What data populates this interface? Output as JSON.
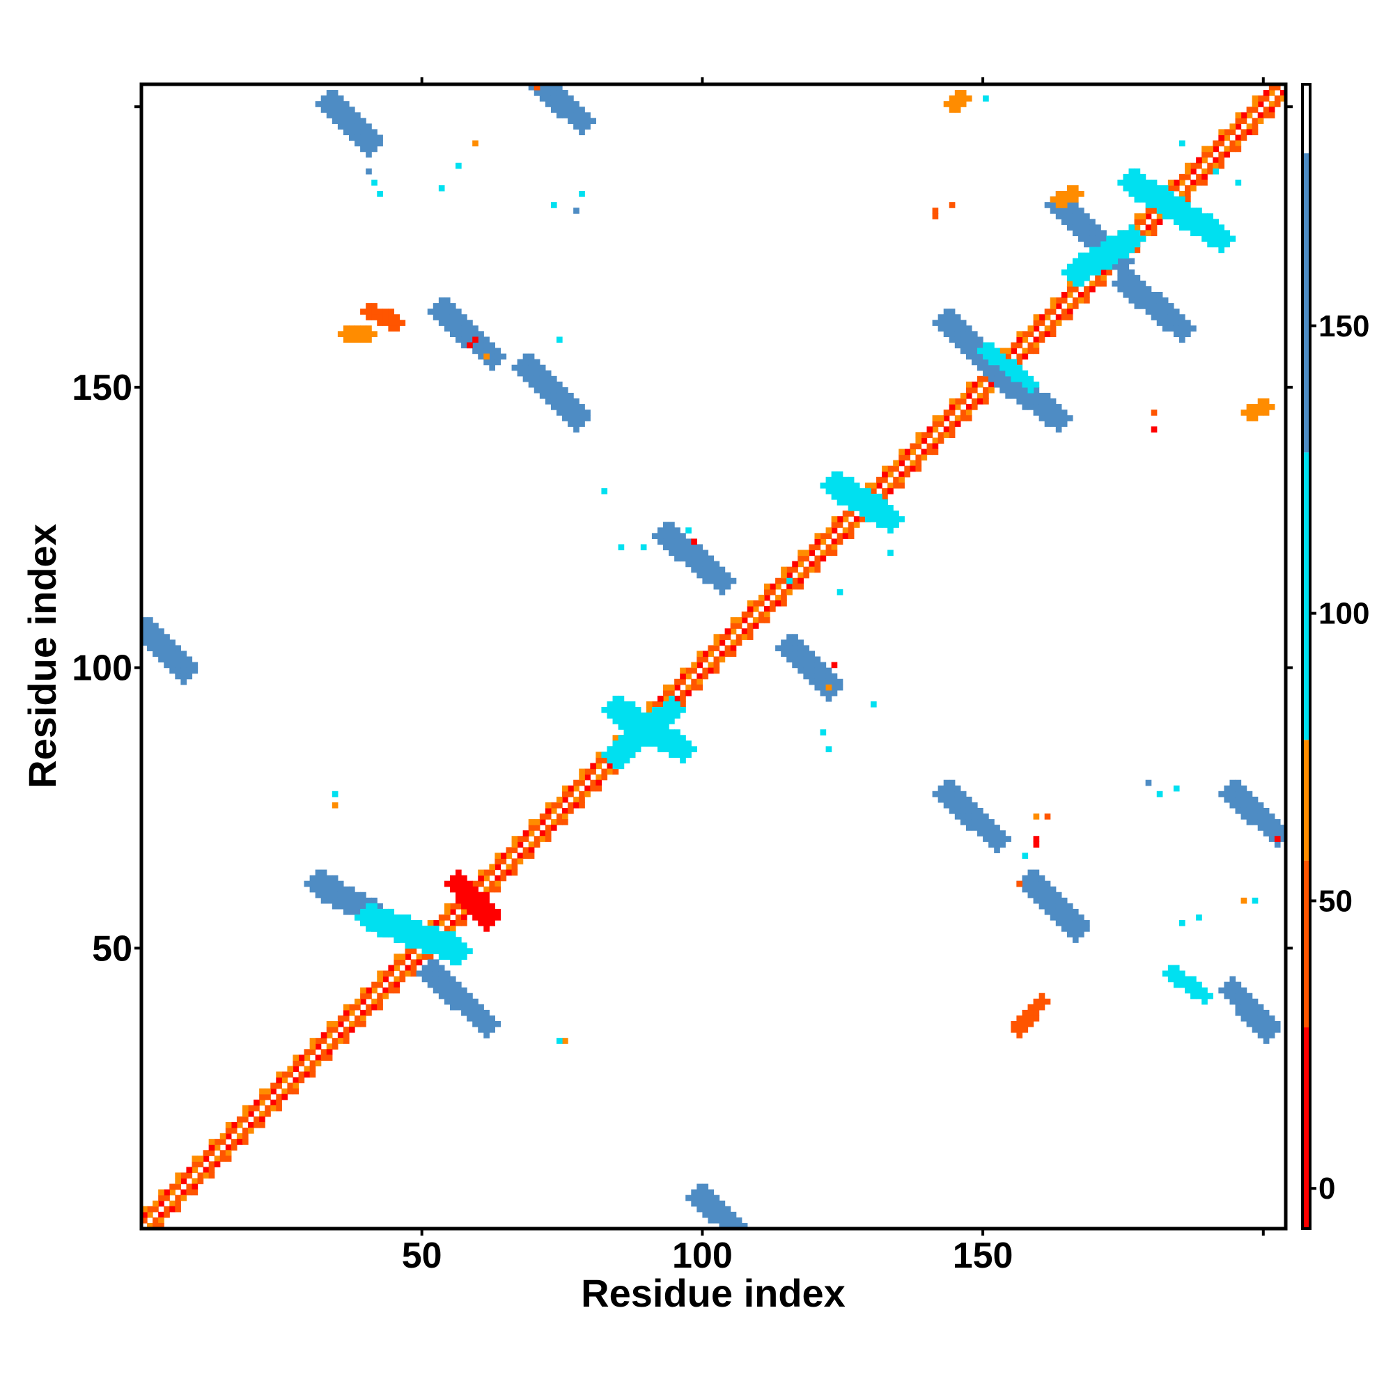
{
  "chart_data": {
    "type": "heatmap",
    "title": "",
    "xlabel": "Residue index",
    "ylabel": "Residue index",
    "xlim": [
      0,
      204
    ],
    "ylim": [
      0,
      204
    ],
    "x_ticks": [
      50,
      100,
      150
    ],
    "y_ticks": [
      50,
      100,
      150
    ],
    "grid": false,
    "colorbar": {
      "placement": "right",
      "range": [
        -7,
        192
      ],
      "ticks": [
        0,
        50,
        100,
        150
      ],
      "bands": [
        {
          "from": -7,
          "to": 28,
          "color": "#ff0000"
        },
        {
          "from": 28,
          "to": 57,
          "color": "#ff5500"
        },
        {
          "from": 57,
          "to": 78,
          "color": "#ff8c00"
        },
        {
          "from": 78,
          "to": 128,
          "color": "#00e0f0"
        },
        {
          "from": 128,
          "to": 180,
          "color": "#4e8cc4"
        },
        {
          "from": 180,
          "to": 192,
          "color": "#ffffff"
        }
      ]
    },
    "colors": {
      "red": "#ff0000",
      "orange_red": "#ff5500",
      "orange": "#ff8c00",
      "cyan": "#00e0f0",
      "steel_blue": "#4e8cc4"
    },
    "regions": [
      {
        "kind": "diagonal",
        "x0": 1,
        "x1": 204
      },
      {
        "kind": "segment",
        "x0": 31,
        "y0": 61,
        "x1": 45,
        "y1": 53,
        "width": 3.5,
        "color": "#4e8cc4"
      },
      {
        "kind": "segment",
        "x0": 51,
        "y0": 45,
        "x1": 61,
        "y1": 36,
        "width": 3.5,
        "color": "#4e8cc4"
      },
      {
        "kind": "segment",
        "x0": 0,
        "y0": 106,
        "x1": 7,
        "y1": 99,
        "width": 3,
        "color": "#4e8cc4"
      },
      {
        "kind": "segment",
        "x0": 99,
        "y0": 5,
        "x1": 105,
        "y1": 0,
        "width": 3,
        "color": "#4e8cc4"
      },
      {
        "kind": "segment",
        "x0": 53,
        "y0": 163,
        "x1": 62,
        "y1": 155,
        "width": 3.5,
        "color": "#4e8cc4"
      },
      {
        "kind": "segment",
        "x0": 68,
        "y0": 153,
        "x1": 77,
        "y1": 144,
        "width": 3.5,
        "color": "#4e8cc4"
      },
      {
        "kind": "segment",
        "x0": 33,
        "y0": 200,
        "x1": 40,
        "y1": 193,
        "width": 3,
        "color": "#4e8cc4"
      },
      {
        "kind": "segment",
        "x0": 71,
        "y0": 203,
        "x1": 78,
        "y1": 197,
        "width": 3,
        "color": "#4e8cc4"
      },
      {
        "kind": "segment",
        "x0": 93,
        "y0": 123,
        "x1": 103,
        "y1": 115,
        "width": 3,
        "color": "#4e8cc4"
      },
      {
        "kind": "segment",
        "x0": 115,
        "y0": 103,
        "x1": 122,
        "y1": 96,
        "width": 3,
        "color": "#4e8cc4"
      },
      {
        "kind": "segment",
        "x0": 143,
        "y0": 161,
        "x1": 151,
        "y1": 153,
        "width": 3,
        "color": "#4e8cc4"
      },
      {
        "kind": "segment",
        "x0": 153,
        "y0": 151,
        "x1": 163,
        "y1": 144,
        "width": 3,
        "color": "#4e8cc4"
      },
      {
        "kind": "segment",
        "x0": 163,
        "y0": 182,
        "x1": 174,
        "y1": 172,
        "width": 3.5,
        "color": "#4e8cc4"
      },
      {
        "kind": "segment",
        "x0": 175,
        "y0": 168,
        "x1": 185,
        "y1": 160,
        "width": 3.5,
        "color": "#4e8cc4"
      },
      {
        "kind": "segment",
        "x0": 143,
        "y0": 77,
        "x1": 152,
        "y1": 69,
        "width": 3.5,
        "color": "#4e8cc4"
      },
      {
        "kind": "segment",
        "x0": 158,
        "y0": 61,
        "x1": 166,
        "y1": 53,
        "width": 3.5,
        "color": "#4e8cc4"
      },
      {
        "kind": "segment",
        "x0": 194,
        "y0": 77,
        "x1": 202,
        "y1": 70,
        "width": 3.5,
        "color": "#4e8cc4"
      },
      {
        "kind": "segment",
        "x0": 194,
        "y0": 42,
        "x1": 200,
        "y1": 35,
        "width": 3.5,
        "color": "#4e8cc4"
      },
      {
        "kind": "segment",
        "x0": 183,
        "y0": 45,
        "x1": 189,
        "y1": 41,
        "width": 2.5,
        "color": "#00e0f0"
      },
      {
        "kind": "segment",
        "x0": 84,
        "y0": 92,
        "x1": 96,
        "y1": 85,
        "width": 3,
        "color": "#00e0f0"
      },
      {
        "kind": "segment",
        "x0": 84,
        "y0": 84,
        "x1": 94,
        "y1": 92,
        "width": 3,
        "color": "#00e0f0"
      },
      {
        "kind": "segment",
        "x0": 40,
        "y0": 55,
        "x1": 56,
        "y1": 49,
        "width": 3,
        "color": "#00e0f0"
      },
      {
        "kind": "segment",
        "x0": 123,
        "y0": 132,
        "x1": 133,
        "y1": 126,
        "width": 3,
        "color": "#00e0f0"
      },
      {
        "kind": "segment",
        "x0": 150,
        "y0": 156,
        "x1": 158,
        "y1": 150,
        "width": 2.5,
        "color": "#00e0f0"
      },
      {
        "kind": "segment",
        "x0": 176,
        "y0": 186,
        "x1": 192,
        "y1": 176,
        "width": 3,
        "color": "#00e0f0"
      },
      {
        "kind": "segment",
        "x0": 166,
        "y0": 170,
        "x1": 176,
        "y1": 176,
        "width": 3,
        "color": "#00e0f0"
      },
      {
        "kind": "segment",
        "x0": 56,
        "y0": 61,
        "x1": 61,
        "y1": 55,
        "width": 3,
        "color": "#ff0000"
      },
      {
        "kind": "segment",
        "x0": 40,
        "y0": 163,
        "x1": 45,
        "y1": 161,
        "width": 1.5,
        "color": "#ff5500"
      },
      {
        "kind": "segment",
        "x0": 36,
        "y0": 159,
        "x1": 40,
        "y1": 159,
        "width": 1.5,
        "color": "#ff8c00"
      },
      {
        "kind": "segment",
        "x0": 156,
        "y0": 35,
        "x1": 160,
        "y1": 40,
        "width": 1.5,
        "color": "#ff5500"
      },
      {
        "kind": "segment",
        "x0": 163,
        "y0": 183,
        "x1": 166,
        "y1": 184,
        "width": 1.5,
        "color": "#ff8c00"
      },
      {
        "kind": "segment",
        "x0": 144,
        "y0": 200,
        "x1": 146,
        "y1": 201,
        "width": 1.5,
        "color": "#ff8c00"
      },
      {
        "kind": "segment",
        "x0": 197,
        "y0": 145,
        "x1": 200,
        "y1": 146,
        "width": 1.5,
        "color": "#ff8c00"
      },
      {
        "kind": "dot",
        "x": 58,
        "y": 157,
        "color": "#ff0000"
      },
      {
        "kind": "dot",
        "x": 59,
        "y": 158,
        "color": "#ff0000"
      },
      {
        "kind": "dot",
        "x": 74,
        "y": 158,
        "color": "#00e0f0"
      },
      {
        "kind": "dot",
        "x": 61,
        "y": 155,
        "color": "#ff8c00"
      },
      {
        "kind": "dot",
        "x": 82,
        "y": 131,
        "color": "#00e0f0"
      },
      {
        "kind": "dot",
        "x": 85,
        "y": 121,
        "color": "#00e0f0"
      },
      {
        "kind": "dot",
        "x": 89,
        "y": 121,
        "color": "#00e0f0"
      },
      {
        "kind": "dot",
        "x": 98,
        "y": 122,
        "color": "#ff0000"
      },
      {
        "kind": "dot",
        "x": 97,
        "y": 124,
        "color": "#00e0f0"
      },
      {
        "kind": "dot",
        "x": 123,
        "y": 100,
        "color": "#ff0000"
      },
      {
        "kind": "dot",
        "x": 122,
        "y": 96,
        "color": "#ff8c00"
      },
      {
        "kind": "dot",
        "x": 130,
        "y": 93,
        "color": "#00e0f0"
      },
      {
        "kind": "dot",
        "x": 121,
        "y": 88,
        "color": "#00e0f0"
      },
      {
        "kind": "dot",
        "x": 122,
        "y": 85,
        "color": "#00e0f0"
      },
      {
        "kind": "dot",
        "x": 115,
        "y": 115,
        "color": "#00e0f0"
      },
      {
        "kind": "dot",
        "x": 124,
        "y": 113,
        "color": "#00e0f0"
      },
      {
        "kind": "dot",
        "x": 133,
        "y": 120,
        "color": "#00e0f0"
      },
      {
        "kind": "dot",
        "x": 34,
        "y": 77,
        "color": "#00e0f0"
      },
      {
        "kind": "dot",
        "x": 34,
        "y": 75,
        "color": "#ff8c00"
      },
      {
        "kind": "dot",
        "x": 75,
        "y": 33,
        "color": "#ff8c00"
      },
      {
        "kind": "dot",
        "x": 74,
        "y": 33,
        "color": "#00e0f0"
      },
      {
        "kind": "dot",
        "x": 40,
        "y": 188,
        "color": "#4e8cc4"
      },
      {
        "kind": "dot",
        "x": 41,
        "y": 186,
        "color": "#00e0f0"
      },
      {
        "kind": "dot",
        "x": 42,
        "y": 184,
        "color": "#00e0f0"
      },
      {
        "kind": "dot",
        "x": 56,
        "y": 189,
        "color": "#00e0f0"
      },
      {
        "kind": "dot",
        "x": 53,
        "y": 185,
        "color": "#00e0f0"
      },
      {
        "kind": "dot",
        "x": 59,
        "y": 193,
        "color": "#ff8c00"
      },
      {
        "kind": "dot",
        "x": 70,
        "y": 203,
        "color": "#ff5500"
      },
      {
        "kind": "dot",
        "x": 78,
        "y": 184,
        "color": "#00e0f0"
      },
      {
        "kind": "dot",
        "x": 77,
        "y": 181,
        "color": "#4e8cc4"
      },
      {
        "kind": "dot",
        "x": 73,
        "y": 182,
        "color": "#00e0f0"
      },
      {
        "kind": "dot",
        "x": 144,
        "y": 182,
        "color": "#ff5500"
      },
      {
        "kind": "dot",
        "x": 141,
        "y": 181,
        "color": "#ff5500"
      },
      {
        "kind": "dot",
        "x": 150,
        "y": 201,
        "color": "#00e0f0"
      },
      {
        "kind": "dot",
        "x": 185,
        "y": 193,
        "color": "#00e0f0"
      },
      {
        "kind": "dot",
        "x": 195,
        "y": 186,
        "color": "#00e0f0"
      },
      {
        "kind": "dot",
        "x": 191,
        "y": 188,
        "color": "#00e0f0"
      },
      {
        "kind": "dot",
        "x": 180,
        "y": 145,
        "color": "#ff5500"
      },
      {
        "kind": "dot",
        "x": 180,
        "y": 142,
        "color": "#ff0000"
      },
      {
        "kind": "dot",
        "x": 179,
        "y": 79,
        "color": "#4e8cc4"
      },
      {
        "kind": "dot",
        "x": 181,
        "y": 77,
        "color": "#00e0f0"
      },
      {
        "kind": "dot",
        "x": 184,
        "y": 78,
        "color": "#00e0f0"
      },
      {
        "kind": "dot",
        "x": 159,
        "y": 73,
        "color": "#ff8c00"
      },
      {
        "kind": "dot",
        "x": 161,
        "y": 73,
        "color": "#ff5500"
      },
      {
        "kind": "dot",
        "x": 159,
        "y": 69,
        "color": "#ff0000"
      },
      {
        "kind": "dot",
        "x": 159,
        "y": 68,
        "color": "#ff0000"
      },
      {
        "kind": "dot",
        "x": 157,
        "y": 66,
        "color": "#00e0f0"
      },
      {
        "kind": "dot",
        "x": 156,
        "y": 61,
        "color": "#ff5500"
      },
      {
        "kind": "dot",
        "x": 196,
        "y": 58,
        "color": "#ff8c00"
      },
      {
        "kind": "dot",
        "x": 198,
        "y": 58,
        "color": "#00e0f0"
      },
      {
        "kind": "dot",
        "x": 188,
        "y": 55,
        "color": "#00e0f0"
      },
      {
        "kind": "dot",
        "x": 185,
        "y": 54,
        "color": "#00e0f0"
      },
      {
        "kind": "dot",
        "x": 202,
        "y": 69,
        "color": "#ff0000"
      },
      {
        "kind": "dot",
        "x": 141,
        "y": 180,
        "color": "#ff5500"
      }
    ]
  }
}
